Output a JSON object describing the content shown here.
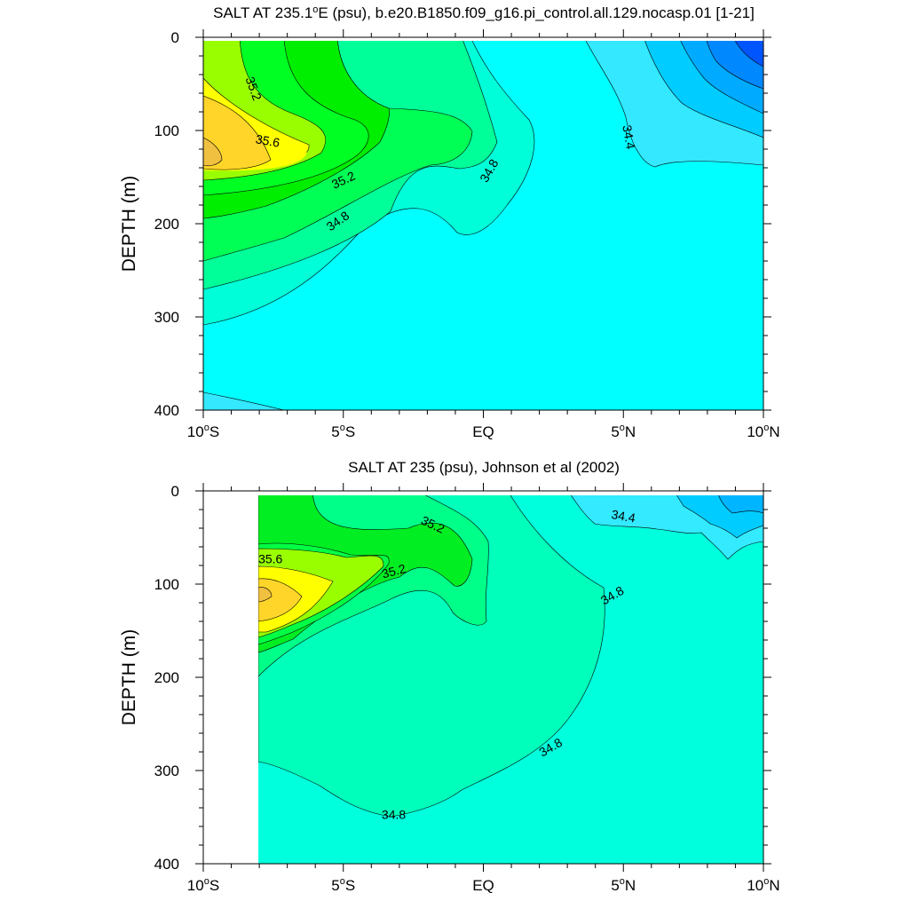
{
  "chart_data": [
    {
      "type": "contour",
      "title": "SALT AT 235.1°E (psu), b.e20.B1850.f09_g16.pi_control.all.129.nocasp.01 [1-21]",
      "title_parts": [
        "SALT AT 235.1",
        "o",
        "E (psu), b.e20.B1850.f09_g16.pi_control.all.129.nocasp.01 [1-21]"
      ],
      "ylabel": "DEPTH (m)",
      "xlim": [
        -10,
        10
      ],
      "ylim": [
        400,
        0
      ],
      "x_ticks": [
        {
          "value": -10,
          "label": "10°S",
          "num": "10",
          "hemi": "S"
        },
        {
          "value": -5,
          "label": "5°S",
          "num": "5",
          "hemi": "S"
        },
        {
          "value": 0,
          "label": "EQ",
          "num": "EQ",
          "hemi": ""
        },
        {
          "value": 5,
          "label": "5°N",
          "num": "5",
          "hemi": "N"
        },
        {
          "value": 10,
          "label": "10°N",
          "num": "10",
          "hemi": "N"
        }
      ],
      "y_ticks": [
        {
          "value": 0,
          "label": "0"
        },
        {
          "value": 100,
          "label": "100"
        },
        {
          "value": 200,
          "label": "200"
        },
        {
          "value": 300,
          "label": "300"
        },
        {
          "value": 400,
          "label": "400"
        }
      ],
      "contour_labels": [
        {
          "text": "35.2",
          "x": -8.2,
          "y": 55,
          "angle": 70
        },
        {
          "text": "35.6",
          "x": -7.7,
          "y": 111,
          "angle": 10
        },
        {
          "text": "35.2",
          "x": -5.0,
          "y": 153,
          "angle": -25
        },
        {
          "text": "34.8",
          "x": -5.2,
          "y": 197,
          "angle": -35
        },
        {
          "text": "34.8",
          "x": 0.2,
          "y": 143,
          "angle": -60
        },
        {
          "text": "34.4",
          "x": 5.2,
          "y": 107,
          "angle": 80
        }
      ]
    },
    {
      "type": "contour",
      "title": "SALT AT 235 (psu), Johnson et al (2002)",
      "ylabel": "DEPTH (m)",
      "xlim": [
        -10,
        10
      ],
      "ylim": [
        400,
        0
      ],
      "x_ticks": [
        {
          "value": -10,
          "label": "10°S",
          "num": "10",
          "hemi": "S"
        },
        {
          "value": -5,
          "label": "5°S",
          "num": "5",
          "hemi": "S"
        },
        {
          "value": 0,
          "label": "EQ",
          "num": "EQ",
          "hemi": ""
        },
        {
          "value": 5,
          "label": "5°N",
          "num": "5",
          "hemi": "N"
        },
        {
          "value": 10,
          "label": "10°N",
          "num": "10",
          "hemi": "N"
        }
      ],
      "y_ticks": [
        {
          "value": 0,
          "label": "0"
        },
        {
          "value": 100,
          "label": "100"
        },
        {
          "value": 200,
          "label": "200"
        },
        {
          "value": 300,
          "label": "300"
        },
        {
          "value": 400,
          "label": "400"
        }
      ],
      "contour_labels": [
        {
          "text": "35.2",
          "x": -1.8,
          "y": 36,
          "angle": 25
        },
        {
          "text": "35.6",
          "x": -7.6,
          "y": 73,
          "angle": 0
        },
        {
          "text": "35.2",
          "x": -3.2,
          "y": 86,
          "angle": -15
        },
        {
          "text": "34.4",
          "x": 5.0,
          "y": 27,
          "angle": 10
        },
        {
          "text": "34.8",
          "x": 4.6,
          "y": 112,
          "angle": -30
        },
        {
          "text": "34.8",
          "x": 2.4,
          "y": 275,
          "angle": -30
        },
        {
          "text": "34.8",
          "x": -3.2,
          "y": 347,
          "angle": 0
        }
      ]
    }
  ]
}
